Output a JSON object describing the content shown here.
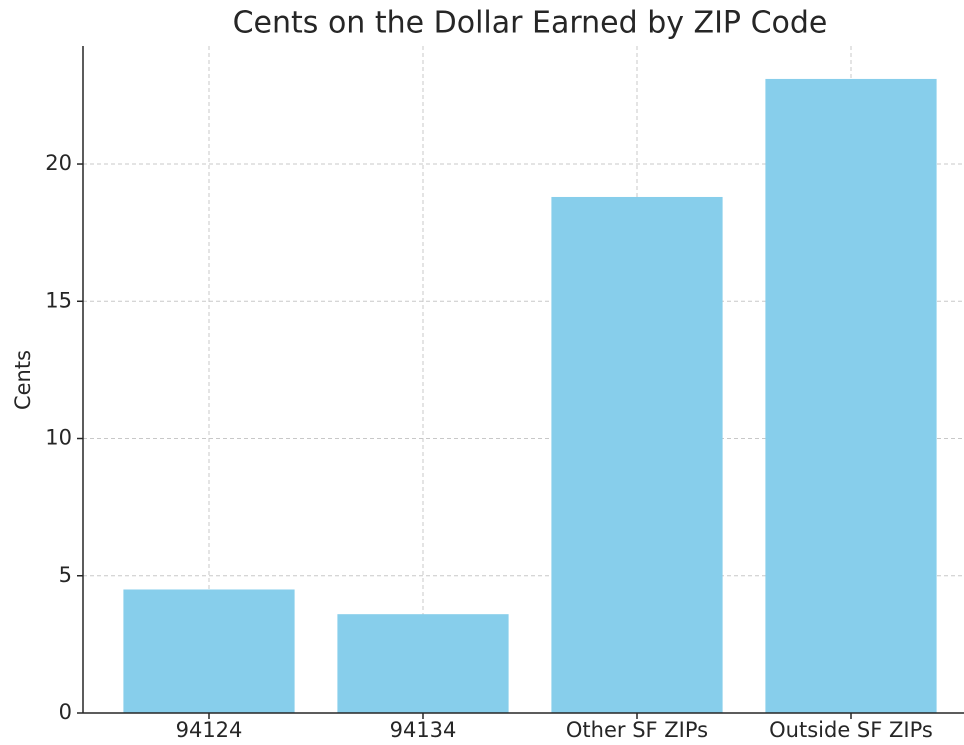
{
  "chart_data": {
    "type": "bar",
    "title": "Cents on the Dollar Earned by ZIP Code",
    "ylabel": "Cents",
    "categories": [
      "94124",
      "94134",
      "Other SF ZIPs",
      "Outside SF ZIPs"
    ],
    "values": [
      4.5,
      3.6,
      18.8,
      23.1
    ],
    "color": "#87ceeb",
    "ylim": [
      0,
      24.3
    ],
    "yticks": [
      0,
      5,
      10,
      15,
      20
    ],
    "grid": true
  }
}
